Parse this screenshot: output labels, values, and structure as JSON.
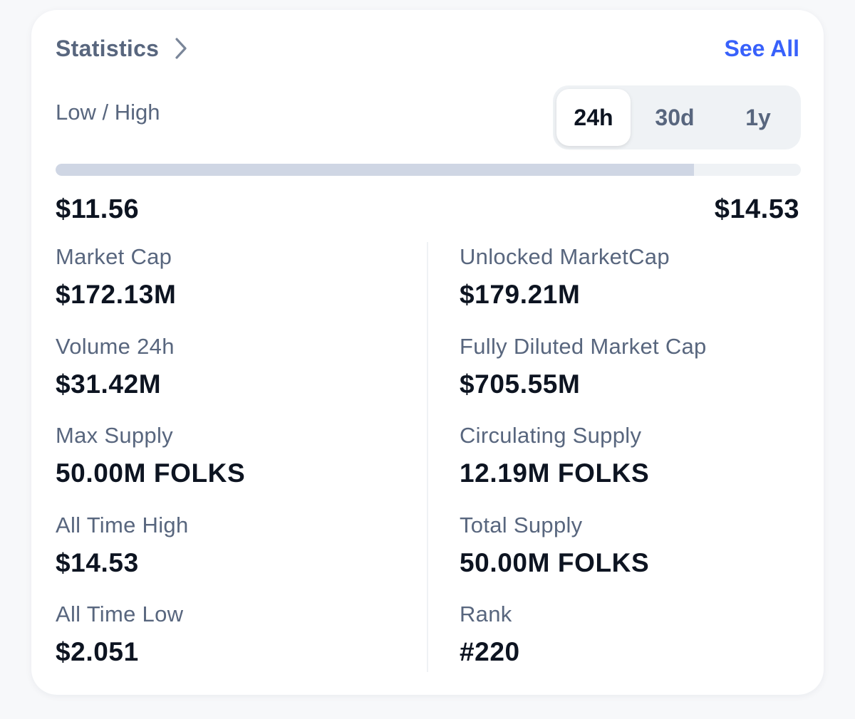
{
  "header": {
    "title": "Statistics",
    "see_all": "See All"
  },
  "range": {
    "label": "Low / High",
    "options": [
      "24h",
      "30d",
      "1y"
    ],
    "selected": "24h",
    "progress_fraction": 0.857,
    "low": "$11.56",
    "high": "$14.53"
  },
  "stats_left": [
    {
      "label": "Market Cap",
      "value": "$172.13M"
    },
    {
      "label": "Volume 24h",
      "value": "$31.42M"
    },
    {
      "label": "Max Supply",
      "value": "50.00M FOLKS"
    },
    {
      "label": "All Time High",
      "value": "$14.53"
    },
    {
      "label": "All Time Low",
      "value": "$2.051"
    }
  ],
  "stats_right": [
    {
      "label": "Unlocked MarketCap",
      "value": "$179.21M"
    },
    {
      "label": "Fully Diluted Market Cap",
      "value": "$705.55M"
    },
    {
      "label": "Circulating Supply",
      "value": "12.19M FOLKS"
    },
    {
      "label": "Total Supply",
      "value": "50.00M FOLKS"
    },
    {
      "label": "Rank",
      "value": "#220"
    }
  ],
  "colors": {
    "accent": "#3861fb",
    "muted_text": "#58667e",
    "strong_text": "#0d1421",
    "bar_fill": "#cfd6e4",
    "bar_track": "#eff2f5"
  },
  "icons": {
    "title_chevron": "chevron-right-icon"
  }
}
